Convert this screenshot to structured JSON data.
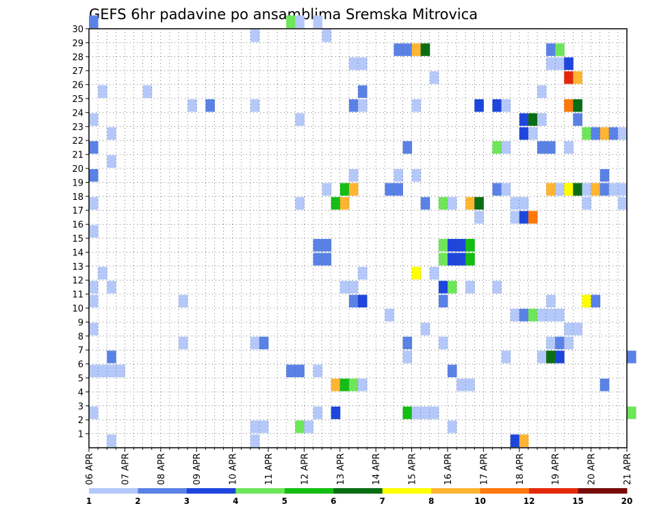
{
  "chart_data": {
    "type": "heatmap",
    "title": "GEFS 6hr padavine po ansamblima Sremska Mitrovica",
    "x_tick_labels": [
      "06 APR",
      "07 APR",
      "08 APR",
      "09 APR",
      "10 APR",
      "11 APR",
      "12 APR",
      "13 APR",
      "14 APR",
      "15 APR",
      "16 APR",
      "17 APR",
      "18 APR",
      "19 APR",
      "20 APR",
      "21 APR"
    ],
    "y_tick_labels": [
      "1",
      "2",
      "3",
      "4",
      "5",
      "6",
      "7",
      "8",
      "9",
      "10",
      "11",
      "12",
      "13",
      "14",
      "15",
      "16",
      "17",
      "18",
      "19",
      "20",
      "21",
      "22",
      "23",
      "24",
      "25",
      "26",
      "27",
      "28",
      "29",
      "30"
    ],
    "x_range": [
      "06 APR",
      "21 APR"
    ],
    "y_range": [
      0,
      30
    ],
    "grid": true,
    "legend_position": "bottom",
    "colorbar": {
      "tick_labels": [
        "1",
        "2",
        "3",
        "4",
        "5",
        "6",
        "7",
        "8",
        "10",
        "12",
        "15",
        "20"
      ],
      "colors": [
        "#b4c8fa",
        "#5a82e6",
        "#1e46dc",
        "#6ee65a",
        "#14be14",
        "#0a6e14",
        "#ffff00",
        "#ffb432",
        "#ff780a",
        "#e6280a",
        "#780a0a"
      ]
    },
    "cells_note": "each cell: [day offset from 06 APR in 6h steps as day fraction, member, colour class 0-10]",
    "cells": [
      [
        0.0,
        30,
        1
      ],
      [
        5.5,
        30,
        3
      ],
      [
        5.75,
        30,
        0
      ],
      [
        6.25,
        30,
        0
      ],
      [
        4.5,
        29,
        0
      ],
      [
        6.5,
        29,
        0
      ],
      [
        8.5,
        28,
        1
      ],
      [
        8.75,
        28,
        1
      ],
      [
        9.0,
        28,
        7
      ],
      [
        9.25,
        28,
        5
      ],
      [
        12.75,
        28,
        1
      ],
      [
        13.0,
        28,
        3
      ],
      [
        7.25,
        27,
        0
      ],
      [
        7.5,
        27,
        0
      ],
      [
        12.75,
        27,
        0
      ],
      [
        13.0,
        27,
        0
      ],
      [
        13.25,
        27,
        2
      ],
      [
        13.25,
        26,
        9
      ],
      [
        13.5,
        26,
        7
      ],
      [
        9.5,
        26,
        0
      ],
      [
        0.25,
        25,
        0
      ],
      [
        1.5,
        25,
        0
      ],
      [
        7.5,
        25,
        1
      ],
      [
        12.5,
        25,
        0
      ],
      [
        2.75,
        24,
        0
      ],
      [
        3.25,
        24,
        1
      ],
      [
        4.5,
        24,
        0
      ],
      [
        7.25,
        24,
        1
      ],
      [
        7.5,
        24,
        0
      ],
      [
        9.0,
        24,
        0
      ],
      [
        10.75,
        24,
        2
      ],
      [
        11.25,
        24,
        2
      ],
      [
        11.5,
        24,
        0
      ],
      [
        13.25,
        24,
        8
      ],
      [
        13.5,
        24,
        5
      ],
      [
        0.0,
        23,
        0
      ],
      [
        5.75,
        23,
        0
      ],
      [
        12.0,
        23,
        2
      ],
      [
        12.25,
        23,
        5
      ],
      [
        12.5,
        23,
        0
      ],
      [
        13.5,
        23,
        1
      ],
      [
        0.5,
        22,
        0
      ],
      [
        12.0,
        22,
        2
      ],
      [
        12.25,
        22,
        0
      ],
      [
        13.75,
        22,
        3
      ],
      [
        14.0,
        22,
        1
      ],
      [
        14.25,
        22,
        7
      ],
      [
        14.5,
        22,
        1
      ],
      [
        14.75,
        22,
        0
      ],
      [
        0.0,
        21,
        1
      ],
      [
        8.75,
        21,
        1
      ],
      [
        11.25,
        21,
        3
      ],
      [
        11.5,
        21,
        0
      ],
      [
        12.5,
        21,
        1
      ],
      [
        12.75,
        21,
        1
      ],
      [
        13.25,
        21,
        0
      ],
      [
        0.5,
        20,
        0
      ],
      [
        0.0,
        19,
        1
      ],
      [
        7.25,
        19,
        0
      ],
      [
        8.5,
        19,
        0
      ],
      [
        9.0,
        19,
        0
      ],
      [
        14.25,
        19,
        1
      ],
      [
        6.5,
        18,
        0
      ],
      [
        6.75,
        17,
        4
      ],
      [
        7.0,
        17,
        7
      ],
      [
        8.25,
        18,
        1
      ],
      [
        8.5,
        18,
        1
      ],
      [
        11.25,
        18,
        1
      ],
      [
        11.5,
        18,
        0
      ],
      [
        12.75,
        18,
        7
      ],
      [
        13.0,
        18,
        0
      ],
      [
        13.25,
        18,
        6
      ],
      [
        13.5,
        18,
        5
      ],
      [
        13.75,
        18,
        0
      ],
      [
        14.0,
        18,
        7
      ],
      [
        14.25,
        18,
        1
      ],
      [
        14.5,
        18,
        0
      ],
      [
        14.75,
        18,
        0
      ],
      [
        7.0,
        18,
        4
      ],
      [
        7.25,
        18,
        7
      ],
      [
        0.0,
        17,
        0
      ],
      [
        5.75,
        17,
        0
      ],
      [
        9.25,
        17,
        1
      ],
      [
        9.75,
        17,
        3
      ],
      [
        10.0,
        17,
        0
      ],
      [
        10.5,
        17,
        7
      ],
      [
        10.75,
        17,
        5
      ],
      [
        11.75,
        17,
        0
      ],
      [
        12.0,
        17,
        0
      ],
      [
        13.75,
        17,
        0
      ],
      [
        14.75,
        17,
        0
      ],
      [
        10.75,
        16,
        0
      ],
      [
        11.75,
        16,
        0
      ],
      [
        12.0,
        16,
        2
      ],
      [
        12.25,
        16,
        8
      ],
      [
        0.0,
        15,
        0
      ],
      [
        6.25,
        14,
        1
      ],
      [
        6.5,
        14,
        1
      ],
      [
        9.75,
        14,
        3
      ],
      [
        10.0,
        14,
        2
      ],
      [
        10.25,
        14,
        2
      ],
      [
        10.5,
        14,
        4
      ],
      [
        6.25,
        13,
        1
      ],
      [
        6.5,
        13,
        1
      ],
      [
        9.75,
        13,
        3
      ],
      [
        10.0,
        13,
        2
      ],
      [
        10.25,
        13,
        2
      ],
      [
        10.5,
        13,
        4
      ],
      [
        0.25,
        12,
        0
      ],
      [
        7.5,
        12,
        0
      ],
      [
        9.0,
        12,
        6
      ],
      [
        9.5,
        12,
        0
      ],
      [
        0.0,
        11,
        0
      ],
      [
        0.5,
        11,
        0
      ],
      [
        7.0,
        11,
        0
      ],
      [
        7.25,
        11,
        0
      ],
      [
        9.75,
        11,
        2
      ],
      [
        10.0,
        11,
        3
      ],
      [
        10.5,
        11,
        0
      ],
      [
        11.25,
        11,
        0
      ],
      [
        0.0,
        10,
        0
      ],
      [
        2.5,
        10,
        0
      ],
      [
        7.25,
        10,
        1
      ],
      [
        7.5,
        10,
        2
      ],
      [
        9.75,
        10,
        1
      ],
      [
        12.75,
        10,
        0
      ],
      [
        13.75,
        10,
        6
      ],
      [
        14.0,
        10,
        1
      ],
      [
        8.25,
        9,
        0
      ],
      [
        11.75,
        9,
        0
      ],
      [
        12.0,
        9,
        1
      ],
      [
        12.25,
        9,
        3
      ],
      [
        12.5,
        9,
        0
      ],
      [
        12.75,
        9,
        0
      ],
      [
        13.0,
        9,
        0
      ],
      [
        0.0,
        8,
        0
      ],
      [
        9.25,
        8,
        0
      ],
      [
        13.25,
        8,
        0
      ],
      [
        13.5,
        8,
        0
      ],
      [
        2.5,
        7,
        0
      ],
      [
        4.5,
        7,
        0
      ],
      [
        4.75,
        7,
        1
      ],
      [
        8.75,
        7,
        1
      ],
      [
        9.75,
        7,
        0
      ],
      [
        12.75,
        7,
        0
      ],
      [
        13.0,
        7,
        1
      ],
      [
        13.25,
        7,
        0
      ],
      [
        0.5,
        6,
        1
      ],
      [
        8.75,
        6,
        0
      ],
      [
        11.5,
        6,
        0
      ],
      [
        12.5,
        6,
        0
      ],
      [
        12.75,
        6,
        5
      ],
      [
        13.0,
        6,
        2
      ],
      [
        15.0,
        6,
        1
      ],
      [
        0.0,
        5,
        0
      ],
      [
        0.25,
        5,
        0
      ],
      [
        0.5,
        5,
        0
      ],
      [
        0.75,
        5,
        0
      ],
      [
        5.5,
        5,
        1
      ],
      [
        5.75,
        5,
        1
      ],
      [
        6.25,
        5,
        0
      ],
      [
        10.0,
        5,
        1
      ],
      [
        6.75,
        4,
        7
      ],
      [
        7.0,
        4,
        4
      ],
      [
        7.25,
        4,
        3
      ],
      [
        7.5,
        4,
        0
      ],
      [
        10.25,
        4,
        0
      ],
      [
        10.5,
        4,
        0
      ],
      [
        14.25,
        4,
        1
      ],
      [
        0.0,
        2,
        0
      ],
      [
        6.25,
        2,
        0
      ],
      [
        6.75,
        2,
        2
      ],
      [
        8.75,
        2,
        4
      ],
      [
        9.0,
        2,
        0
      ],
      [
        9.25,
        2,
        0
      ],
      [
        9.5,
        2,
        0
      ],
      [
        15.0,
        2,
        3
      ],
      [
        4.5,
        1,
        0
      ],
      [
        4.75,
        1,
        0
      ],
      [
        5.75,
        1,
        3
      ],
      [
        6.0,
        1,
        0
      ],
      [
        10.0,
        1,
        0
      ],
      [
        4.5,
        0,
        0
      ],
      [
        0.5,
        0,
        0
      ],
      [
        11.75,
        0,
        2
      ],
      [
        12.0,
        0,
        7
      ]
    ]
  }
}
